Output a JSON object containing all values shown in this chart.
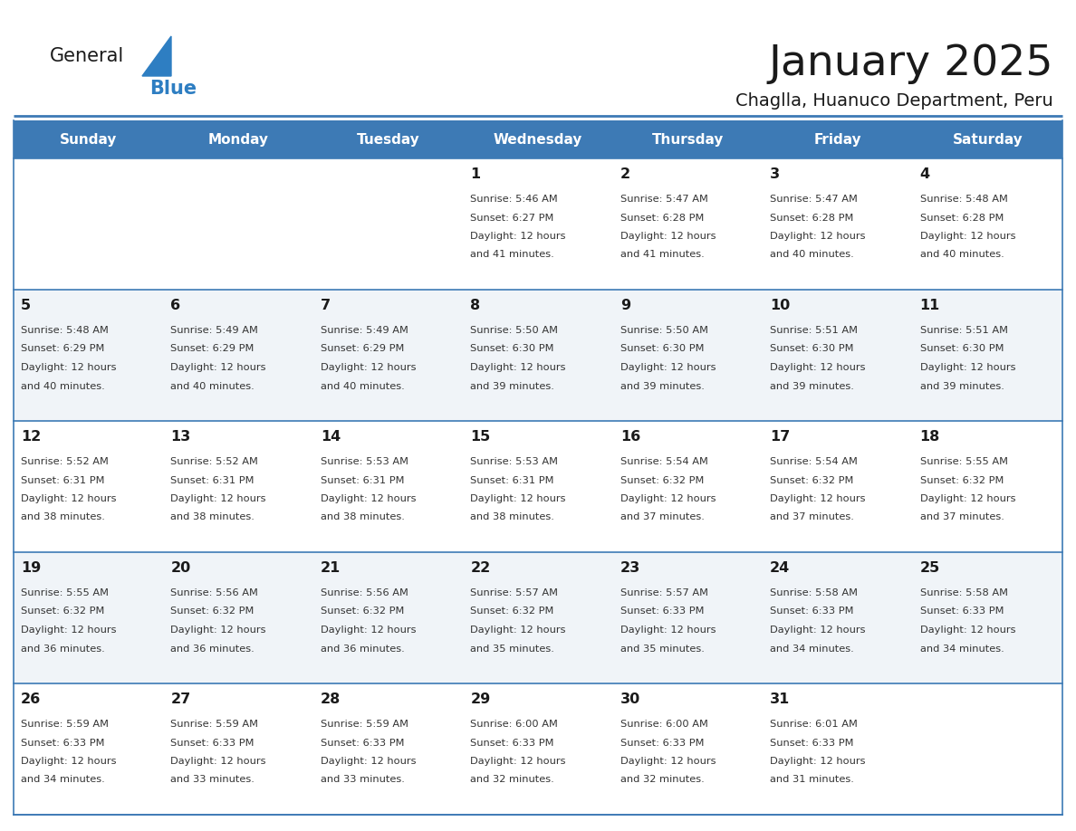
{
  "title": "January 2025",
  "subtitle": "Chaglla, Huanuco Department, Peru",
  "header_bg": "#3D7AB5",
  "header_text_color": "#FFFFFF",
  "days_of_week": [
    "Sunday",
    "Monday",
    "Tuesday",
    "Wednesday",
    "Thursday",
    "Friday",
    "Saturday"
  ],
  "cell_bg_light": "#F0F4F8",
  "cell_bg_white": "#FFFFFF",
  "cell_text_color": "#333333",
  "separator_color": "#3D7AB5",
  "calendar_data": [
    [
      null,
      null,
      null,
      {
        "day": 1,
        "sunrise": "5:46 AM",
        "sunset": "6:27 PM",
        "daylight": "12 hours and 41 minutes."
      },
      {
        "day": 2,
        "sunrise": "5:47 AM",
        "sunset": "6:28 PM",
        "daylight": "12 hours and 41 minutes."
      },
      {
        "day": 3,
        "sunrise": "5:47 AM",
        "sunset": "6:28 PM",
        "daylight": "12 hours and 40 minutes."
      },
      {
        "day": 4,
        "sunrise": "5:48 AM",
        "sunset": "6:28 PM",
        "daylight": "12 hours and 40 minutes."
      }
    ],
    [
      {
        "day": 5,
        "sunrise": "5:48 AM",
        "sunset": "6:29 PM",
        "daylight": "12 hours and 40 minutes."
      },
      {
        "day": 6,
        "sunrise": "5:49 AM",
        "sunset": "6:29 PM",
        "daylight": "12 hours and 40 minutes."
      },
      {
        "day": 7,
        "sunrise": "5:49 AM",
        "sunset": "6:29 PM",
        "daylight": "12 hours and 40 minutes."
      },
      {
        "day": 8,
        "sunrise": "5:50 AM",
        "sunset": "6:30 PM",
        "daylight": "12 hours and 39 minutes."
      },
      {
        "day": 9,
        "sunrise": "5:50 AM",
        "sunset": "6:30 PM",
        "daylight": "12 hours and 39 minutes."
      },
      {
        "day": 10,
        "sunrise": "5:51 AM",
        "sunset": "6:30 PM",
        "daylight": "12 hours and 39 minutes."
      },
      {
        "day": 11,
        "sunrise": "5:51 AM",
        "sunset": "6:30 PM",
        "daylight": "12 hours and 39 minutes."
      }
    ],
    [
      {
        "day": 12,
        "sunrise": "5:52 AM",
        "sunset": "6:31 PM",
        "daylight": "12 hours and 38 minutes."
      },
      {
        "day": 13,
        "sunrise": "5:52 AM",
        "sunset": "6:31 PM",
        "daylight": "12 hours and 38 minutes."
      },
      {
        "day": 14,
        "sunrise": "5:53 AM",
        "sunset": "6:31 PM",
        "daylight": "12 hours and 38 minutes."
      },
      {
        "day": 15,
        "sunrise": "5:53 AM",
        "sunset": "6:31 PM",
        "daylight": "12 hours and 38 minutes."
      },
      {
        "day": 16,
        "sunrise": "5:54 AM",
        "sunset": "6:32 PM",
        "daylight": "12 hours and 37 minutes."
      },
      {
        "day": 17,
        "sunrise": "5:54 AM",
        "sunset": "6:32 PM",
        "daylight": "12 hours and 37 minutes."
      },
      {
        "day": 18,
        "sunrise": "5:55 AM",
        "sunset": "6:32 PM",
        "daylight": "12 hours and 37 minutes."
      }
    ],
    [
      {
        "day": 19,
        "sunrise": "5:55 AM",
        "sunset": "6:32 PM",
        "daylight": "12 hours and 36 minutes."
      },
      {
        "day": 20,
        "sunrise": "5:56 AM",
        "sunset": "6:32 PM",
        "daylight": "12 hours and 36 minutes."
      },
      {
        "day": 21,
        "sunrise": "5:56 AM",
        "sunset": "6:32 PM",
        "daylight": "12 hours and 36 minutes."
      },
      {
        "day": 22,
        "sunrise": "5:57 AM",
        "sunset": "6:32 PM",
        "daylight": "12 hours and 35 minutes."
      },
      {
        "day": 23,
        "sunrise": "5:57 AM",
        "sunset": "6:33 PM",
        "daylight": "12 hours and 35 minutes."
      },
      {
        "day": 24,
        "sunrise": "5:58 AM",
        "sunset": "6:33 PM",
        "daylight": "12 hours and 34 minutes."
      },
      {
        "day": 25,
        "sunrise": "5:58 AM",
        "sunset": "6:33 PM",
        "daylight": "12 hours and 34 minutes."
      }
    ],
    [
      {
        "day": 26,
        "sunrise": "5:59 AM",
        "sunset": "6:33 PM",
        "daylight": "12 hours and 34 minutes."
      },
      {
        "day": 27,
        "sunrise": "5:59 AM",
        "sunset": "6:33 PM",
        "daylight": "12 hours and 33 minutes."
      },
      {
        "day": 28,
        "sunrise": "5:59 AM",
        "sunset": "6:33 PM",
        "daylight": "12 hours and 33 minutes."
      },
      {
        "day": 29,
        "sunrise": "6:00 AM",
        "sunset": "6:33 PM",
        "daylight": "12 hours and 32 minutes."
      },
      {
        "day": 30,
        "sunrise": "6:00 AM",
        "sunset": "6:33 PM",
        "daylight": "12 hours and 32 minutes."
      },
      {
        "day": 31,
        "sunrise": "6:01 AM",
        "sunset": "6:33 PM",
        "daylight": "12 hours and 31 minutes."
      },
      null
    ]
  ]
}
